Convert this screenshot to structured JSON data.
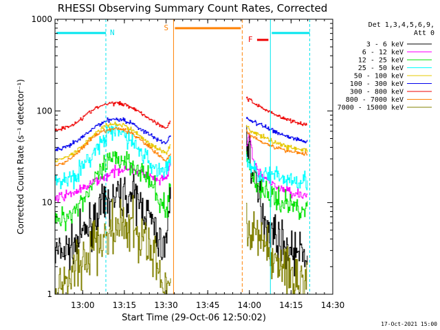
{
  "chart_data": {
    "type": "line",
    "title": "RHESSI Observing Summary Count Rates, Corrected",
    "xlabel": "Start Time (29-Oct-06 12:50:02)",
    "ylabel": "Corrected Count Rate (s⁻¹ detector⁻¹)",
    "y_scale": "log",
    "ylim": [
      1,
      1000
    ],
    "xlim": [
      12.8339,
      14.5
    ],
    "x_ticks": [
      {
        "value": 13.0,
        "label": "13:00"
      },
      {
        "value": 13.25,
        "label": "13:15"
      },
      {
        "value": 13.5,
        "label": "13:30"
      },
      {
        "value": 13.75,
        "label": "13:45"
      },
      {
        "value": 14.0,
        "label": "14:00"
      },
      {
        "value": 14.25,
        "label": "14:15"
      },
      {
        "value": 14.5,
        "label": "14:30"
      }
    ],
    "y_ticks": [
      {
        "value": 1,
        "label": "1"
      },
      {
        "value": 10,
        "label": "10"
      },
      {
        "value": 100,
        "label": "100"
      },
      {
        "value": 1000,
        "label": "1000"
      }
    ],
    "legend_header": [
      "Det 1,3,4,5,6,9,",
      "Att 0"
    ],
    "legend_position": "right",
    "series": [
      {
        "name": "3 - 6 keV",
        "color": "#000000",
        "noise": 0.5,
        "x": [
          12.834,
          12.9,
          12.95,
          13.0,
          13.05,
          13.1,
          13.15,
          13.2,
          13.25,
          13.3,
          13.35,
          13.4,
          13.45,
          13.47,
          13.49,
          13.51,
          13.53
        ],
        "y": [
          2.8,
          3.0,
          3.5,
          4.5,
          6.0,
          8.0,
          10.0,
          11.5,
          12.0,
          11.5,
          9.5,
          7.0,
          4.0,
          3.3,
          3.5,
          5.0,
          20.0
        ],
        "x2": [
          13.98,
          14.0,
          14.02,
          14.05,
          14.08,
          14.1,
          14.15,
          14.2,
          14.25,
          14.3,
          14.35
        ],
        "y2": [
          50.0,
          35.0,
          20.0,
          12.0,
          8.0,
          6.0,
          4.5,
          3.5,
          3.0,
          2.8,
          2.6
        ]
      },
      {
        "name": "6 - 12 keV",
        "color": "#ff00ff",
        "noise": 0.12,
        "x": [
          12.834,
          12.9,
          12.95,
          13.0,
          13.05,
          13.1,
          13.15,
          13.2,
          13.25,
          13.3,
          13.35,
          13.4,
          13.45,
          13.5,
          13.53
        ],
        "y": [
          11.0,
          12.0,
          13.0,
          14.0,
          16.0,
          18.0,
          20.0,
          22.0,
          24.0,
          23.0,
          21.0,
          19.0,
          17.0,
          18.0,
          30.0
        ],
        "x2": [
          13.98,
          14.0,
          14.02,
          14.05,
          14.1,
          14.15,
          14.2,
          14.25,
          14.3,
          14.35
        ],
        "y2": [
          40.0,
          55.0,
          30.0,
          22.0,
          18.0,
          15.0,
          14.0,
          13.0,
          12.5,
          12.0
        ]
      },
      {
        "name": "12 - 25 keV",
        "color": "#00e000",
        "noise": 0.3,
        "x": [
          12.834,
          12.9,
          12.95,
          13.0,
          13.05,
          13.1,
          13.15,
          13.2,
          13.25,
          13.3,
          13.35,
          13.4,
          13.45,
          13.5,
          13.53
        ],
        "y": [
          6.0,
          7.0,
          8.5,
          11.0,
          15.0,
          20.0,
          27.0,
          30.0,
          30.0,
          27.0,
          22.0,
          17.0,
          11.0,
          8.0,
          20.0
        ],
        "x2": [
          13.98,
          14.0,
          14.02,
          14.05,
          14.1,
          14.15,
          14.2,
          14.25,
          14.3,
          14.35
        ],
        "y2": [
          30.0,
          25.0,
          18.0,
          15.0,
          13.0,
          11.0,
          10.0,
          9.5,
          9.0,
          8.5
        ]
      },
      {
        "name": "25 - 50 keV",
        "color": "#00ffff",
        "noise": 0.25,
        "x": [
          12.834,
          12.9,
          12.95,
          13.0,
          13.05,
          13.1,
          13.15,
          13.2,
          13.25,
          13.3,
          13.35,
          13.4,
          13.45,
          13.5,
          13.53
        ],
        "y": [
          17.0,
          18.0,
          20.0,
          24.0,
          32.0,
          42.0,
          55.0,
          60.0,
          55.0,
          45.0,
          35.0,
          27.0,
          23.0,
          22.0,
          35.0
        ],
        "x2": [
          13.98,
          14.0,
          14.02,
          14.05,
          14.1,
          14.15,
          14.2,
          14.25,
          14.3,
          14.35
        ],
        "y2": [
          30.0,
          25.0,
          23.0,
          21.0,
          20.0,
          19.0,
          18.5,
          18.0,
          18.0,
          17.5
        ]
      },
      {
        "name": "50 - 100 keV",
        "color": "#e6c800",
        "noise": 0.06,
        "x": [
          12.834,
          12.9,
          12.95,
          13.0,
          13.05,
          13.1,
          13.15,
          13.2,
          13.25,
          13.3,
          13.35,
          13.4,
          13.45,
          13.5,
          13.53
        ],
        "y": [
          28.0,
          31.0,
          35.0,
          42.0,
          52.0,
          62.0,
          70.0,
          72.0,
          69.0,
          61.0,
          52.0,
          44.0,
          38.0,
          35.0,
          45.0
        ],
        "x2": [
          13.98,
          14.0,
          14.05,
          14.1,
          14.15,
          14.2,
          14.25,
          14.3,
          14.35
        ],
        "y2": [
          70.0,
          62.0,
          55.0,
          50.0,
          46.0,
          42.0,
          40.0,
          38.0,
          37.0
        ]
      },
      {
        "name": "100 - 300 keV",
        "color": "#0000ee",
        "noise": 0.06,
        "x": [
          12.834,
          12.9,
          12.95,
          13.0,
          13.05,
          13.1,
          13.15,
          13.2,
          13.25,
          13.3,
          13.35,
          13.4,
          13.45,
          13.5,
          13.53
        ],
        "y": [
          37.0,
          40.0,
          45.0,
          52.0,
          62.0,
          72.0,
          80.0,
          82.0,
          79.0,
          72.0,
          63.0,
          55.0,
          48.0,
          45.0,
          55.0
        ],
        "x2": [
          13.98,
          14.0,
          14.05,
          14.1,
          14.15,
          14.2,
          14.25,
          14.3,
          14.35
        ],
        "y2": [
          85.0,
          80.0,
          72.0,
          66.0,
          60.0,
          55.0,
          51.0,
          48.0,
          46.0
        ]
      },
      {
        "name": "300 - 800 keV",
        "color": "#ee0000",
        "noise": 0.05,
        "x": [
          12.834,
          12.9,
          12.95,
          13.0,
          13.05,
          13.1,
          13.15,
          13.2,
          13.25,
          13.3,
          13.35,
          13.4,
          13.45,
          13.5,
          13.53
        ],
        "y": [
          62.0,
          66.0,
          73.0,
          85.0,
          100.0,
          112.0,
          120.0,
          122.0,
          118.0,
          108.0,
          95.0,
          82.0,
          72.0,
          65.0,
          80.0
        ],
        "x2": [
          13.98,
          14.0,
          14.05,
          14.1,
          14.15,
          14.2,
          14.25,
          14.3,
          14.35
        ],
        "y2": [
          140.0,
          130.0,
          115.0,
          102.0,
          92.0,
          84.0,
          78.0,
          73.0,
          70.0
        ]
      },
      {
        "name": "800 - 7000 keV",
        "color": "#ff8000",
        "noise": 0.05,
        "x": [
          12.834,
          12.9,
          12.95,
          13.0,
          13.05,
          13.1,
          13.15,
          13.2,
          13.25,
          13.3,
          13.35,
          13.4,
          13.45,
          13.5,
          13.53
        ],
        "y": [
          25.0,
          28.0,
          33.0,
          40.0,
          49.0,
          57.0,
          62.0,
          64.0,
          62.0,
          56.0,
          48.0,
          40.0,
          33.0,
          29.0,
          35.0
        ],
        "x2": [
          13.98,
          14.0,
          14.05,
          14.1,
          14.15,
          14.2,
          14.25,
          14.3,
          14.35
        ],
        "y2": [
          60.0,
          55.0,
          49.0,
          44.0,
          40.0,
          38.0,
          36.0,
          35.0,
          34.0
        ]
      },
      {
        "name": "7000 - 15000 keV",
        "color": "#808000",
        "noise": 0.7,
        "x": [
          12.834,
          12.9,
          12.95,
          13.0,
          13.05,
          13.1,
          13.15,
          13.2,
          13.25,
          13.3,
          13.35,
          13.4,
          13.45,
          13.47,
          13.5,
          13.52,
          13.53
        ],
        "y": [
          1.2,
          1.4,
          1.8,
          2.3,
          3.0,
          3.8,
          4.5,
          5.0,
          5.2,
          5.0,
          4.0,
          3.0,
          2.0,
          1.3,
          1.1,
          1.5,
          3.0
        ],
        "x2": [
          13.98,
          14.0,
          14.02,
          14.05,
          14.1,
          14.15,
          14.2,
          14.25,
          14.3,
          14.35
        ],
        "y2": [
          5.0,
          6.0,
          5.0,
          4.0,
          3.0,
          2.5,
          2.0,
          1.6,
          1.4,
          1.3
        ]
      }
    ],
    "markers": {
      "night": {
        "label": "N",
        "color": "#00e5ee",
        "intervals": [
          [
            12.834,
            13.139
          ],
          [
            14.126,
            14.362
          ]
        ]
      },
      "saa": {
        "label": "S",
        "color": "#ff8000",
        "start": 13.545,
        "end": 13.957
      },
      "flare": {
        "label": "F",
        "color": "#ee0000",
        "start": 14.046,
        "end": 14.114
      }
    },
    "grid": false
  },
  "footer": {
    "date_stamp": "17-Oct-2021 15:00"
  }
}
